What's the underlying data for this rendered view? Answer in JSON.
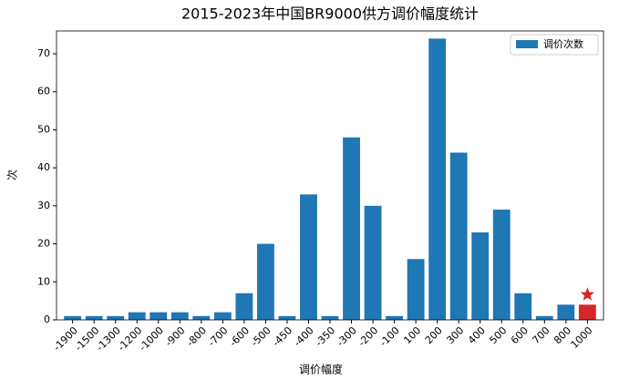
{
  "chart_data": {
    "type": "bar",
    "title": "2015-2023年中国BR9000供方调价幅度统计",
    "x_label": "调价幅度",
    "y_label": "次",
    "categories": [
      "-1900",
      "-1500",
      "-1300",
      "-1200",
      "-1000",
      "-900",
      "-800",
      "-700",
      "-600",
      "-500",
      "-450",
      "-400",
      "-350",
      "-300",
      "-200",
      "-100",
      "100",
      "200",
      "300",
      "400",
      "500",
      "600",
      "700",
      "800",
      "1000"
    ],
    "series": [
      {
        "name": "调价次数",
        "color": "#1f77b4",
        "values": [
          1,
          1,
          1,
          2,
          2,
          2,
          1,
          2,
          7,
          20,
          1,
          33,
          1,
          48,
          30,
          1,
          16,
          74,
          44,
          23,
          29,
          7,
          1,
          4,
          4
        ],
        "colors": [
          "#1f77b4",
          "#1f77b4",
          "#1f77b4",
          "#1f77b4",
          "#1f77b4",
          "#1f77b4",
          "#1f77b4",
          "#1f77b4",
          "#1f77b4",
          "#1f77b4",
          "#1f77b4",
          "#1f77b4",
          "#1f77b4",
          "#1f77b4",
          "#1f77b4",
          "#1f77b4",
          "#1f77b4",
          "#1f77b4",
          "#1f77b4",
          "#1f77b4",
          "#1f77b4",
          "#1f77b4",
          "#1f77b4",
          "#1f77b4",
          "#d62728"
        ]
      }
    ],
    "ylim": [
      0,
      76
    ],
    "yticks": [
      0,
      10,
      20,
      30,
      40,
      50,
      60,
      70
    ],
    "grid": false,
    "legend": "upper right"
  }
}
